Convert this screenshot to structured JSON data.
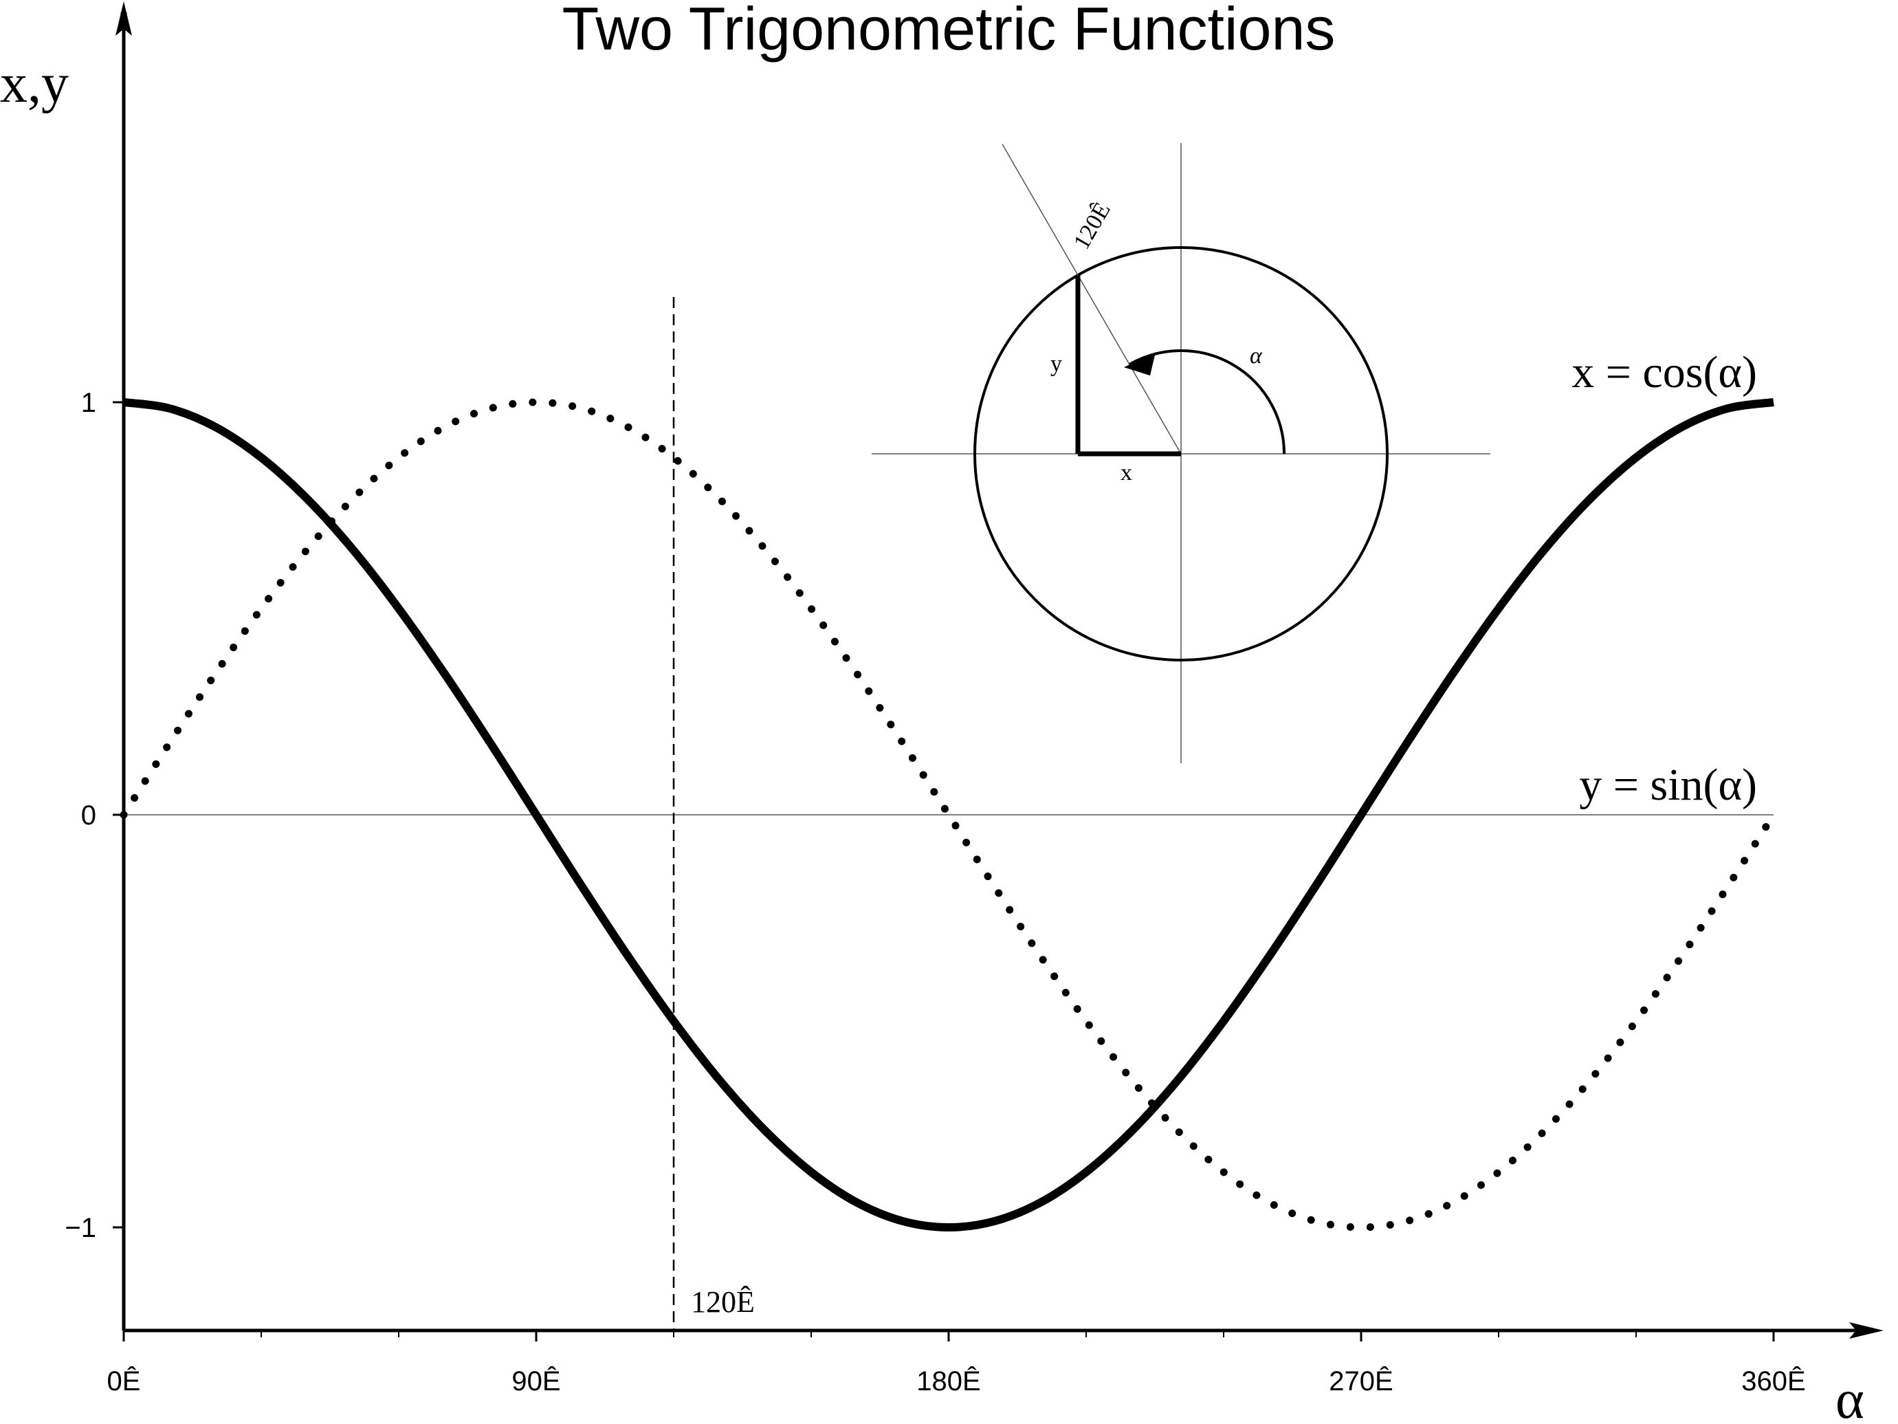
{
  "chart_data": {
    "type": "line",
    "title": "Two Trigonometric Functions",
    "xlabel": "α",
    "ylabel": "x,y",
    "xlim": [
      0,
      360
    ],
    "ylim": [
      -1.25,
      1.25
    ],
    "x_ticks": [
      {
        "value": 0,
        "label": "0Ê"
      },
      {
        "value": 90,
        "label": "90Ê"
      },
      {
        "value": 180,
        "label": "180Ê"
      },
      {
        "value": 270,
        "label": "270Ê"
      },
      {
        "value": 360,
        "label": "360Ê"
      }
    ],
    "x_minor_ticks": [
      30,
      60,
      120,
      150,
      210,
      240,
      300,
      330
    ],
    "y_ticks": [
      {
        "value": 1,
        "label": "1"
      },
      {
        "value": 0,
        "label": "0"
      },
      {
        "value": -1,
        "label": "−1"
      }
    ],
    "series": [
      {
        "name": "x = cos(α)",
        "style": "solid-thick",
        "x": [
          0,
          10,
          20,
          30,
          40,
          50,
          60,
          70,
          80,
          90,
          100,
          110,
          120,
          130,
          140,
          150,
          160,
          170,
          180,
          190,
          200,
          210,
          220,
          230,
          240,
          250,
          260,
          270,
          280,
          290,
          300,
          310,
          320,
          330,
          340,
          350,
          360
        ],
        "values": [
          1.0,
          0.985,
          0.94,
          0.866,
          0.766,
          0.643,
          0.5,
          0.342,
          0.174,
          0.0,
          -0.174,
          -0.342,
          -0.5,
          -0.643,
          -0.766,
          -0.866,
          -0.94,
          -0.985,
          -1.0,
          -0.985,
          -0.94,
          -0.866,
          -0.766,
          -0.643,
          -0.5,
          -0.342,
          -0.174,
          0.0,
          0.174,
          0.342,
          0.5,
          0.643,
          0.766,
          0.866,
          0.94,
          0.985,
          1.0
        ]
      },
      {
        "name": "y = sin(α)",
        "style": "dotted",
        "x": [
          0,
          10,
          20,
          30,
          40,
          50,
          60,
          70,
          80,
          90,
          100,
          110,
          120,
          130,
          140,
          150,
          160,
          170,
          180,
          190,
          200,
          210,
          220,
          230,
          240,
          250,
          260,
          270,
          280,
          290,
          300,
          310,
          320,
          330,
          340,
          350,
          360
        ],
        "values": [
          0.0,
          0.174,
          0.342,
          0.5,
          0.643,
          0.766,
          0.866,
          0.94,
          0.985,
          1.0,
          0.985,
          0.94,
          0.866,
          0.766,
          0.643,
          0.5,
          0.342,
          0.174,
          0.0,
          -0.174,
          -0.342,
          -0.5,
          -0.643,
          -0.766,
          -0.866,
          -0.94,
          -0.985,
          -1.0,
          -0.985,
          -0.94,
          -0.866,
          -0.766,
          -0.643,
          -0.5,
          -0.342,
          -0.174,
          0.0
        ]
      }
    ],
    "reference_line": {
      "x": 120,
      "style": "dashed",
      "label": "120Ê"
    },
    "zero_line": true,
    "grid": false,
    "inset": {
      "angle_deg": 120,
      "angle_label": "120Ê",
      "arc_label": "α",
      "x_label": "x",
      "y_label": "y"
    }
  }
}
